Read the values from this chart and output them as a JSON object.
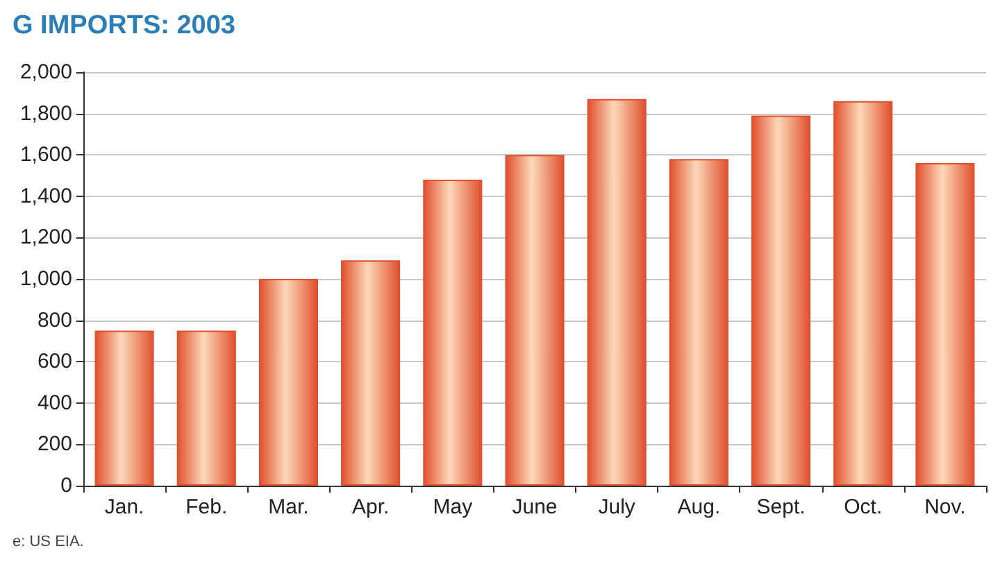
{
  "chart_data": {
    "type": "bar",
    "title": "G IMPORTS: 2003",
    "categories": [
      "Jan.",
      "Feb.",
      "Mar.",
      "Apr.",
      "May",
      "June",
      "July",
      "Aug.",
      "Sept.",
      "Oct.",
      "Nov."
    ],
    "values": [
      750,
      750,
      1000,
      1090,
      1480,
      1600,
      1870,
      1580,
      1790,
      1860,
      1560
    ],
    "color": "#e0502e",
    "ylim": [
      0,
      2000
    ],
    "yticks": [
      {
        "value": 0,
        "label": "0"
      },
      {
        "value": 200,
        "label": "200"
      },
      {
        "value": 400,
        "label": "400"
      },
      {
        "value": 600,
        "label": "600"
      },
      {
        "value": 800,
        "label": "800"
      },
      {
        "value": 1000,
        "label": "1,000"
      },
      {
        "value": 1200,
        "label": "1,200"
      },
      {
        "value": 1400,
        "label": "1,400"
      },
      {
        "value": 1600,
        "label": "1,600"
      },
      {
        "value": 1800,
        "label": "1,800"
      },
      {
        "value": 2000,
        "label": "2,000"
      }
    ],
    "grid": "y",
    "annotations": [
      "e: US EIA."
    ]
  }
}
